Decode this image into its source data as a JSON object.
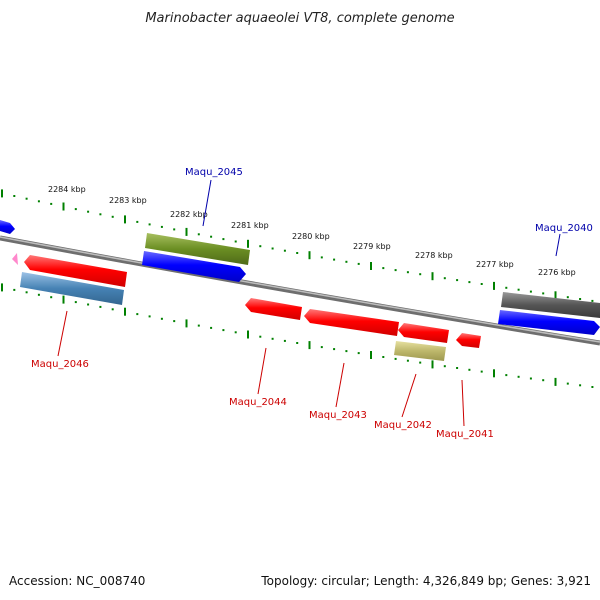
{
  "title": "Marinobacter aquaeolei VT8, complete genome",
  "kbp_ticks": [
    "2284 kbp",
    "2283 kbp",
    "2282 kbp",
    "2281 kbp",
    "2280 kbp",
    "2279 kbp",
    "2278 kbp",
    "2277 kbp",
    "2276 kbp"
  ],
  "genes": [
    {
      "name": "Maqu_2045",
      "strand": "forward",
      "color": "#0000ff"
    },
    {
      "name": "Maqu_2040",
      "strand": "forward",
      "color": "#0000ff"
    },
    {
      "name": "Maqu_2046",
      "strand": "reverse",
      "color": "#ff0000"
    },
    {
      "name": "Maqu_2044",
      "strand": "reverse",
      "color": "#ff0000"
    },
    {
      "name": "Maqu_2043",
      "strand": "reverse",
      "color": "#ff0000"
    },
    {
      "name": "Maqu_2042",
      "strand": "reverse",
      "color": "#ff0000"
    },
    {
      "name": "Maqu_2041",
      "strand": "reverse",
      "color": "#ff0000"
    }
  ],
  "colors": {
    "backbone": "#808080",
    "tick": "#008000",
    "forward_label": "#0000aa",
    "reverse_label": "#cc0000",
    "olive": "#6b8e23",
    "steelblue": "#4682b4",
    "khaki": "#bdb76b",
    "grey": "#555555",
    "pink": "#ff88cc"
  },
  "footer": {
    "accession": "Accession: NC_008740",
    "topology": "Topology: circular; Length: 4,326,849 bp; Genes: 3,921"
  }
}
